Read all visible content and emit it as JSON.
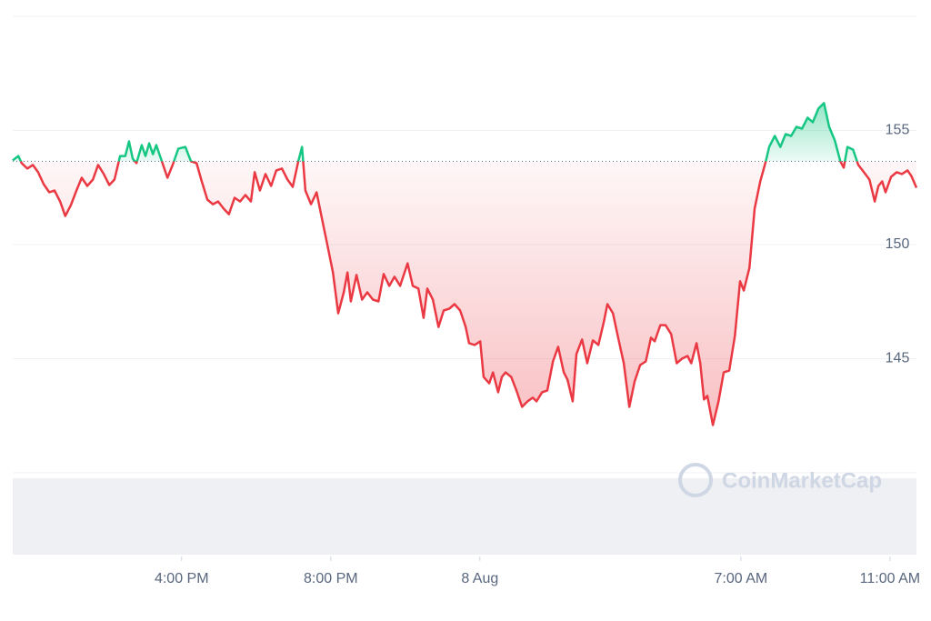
{
  "chart_data": {
    "type": "line",
    "watermark": "CoinMarketCap",
    "x": [
      11.47,
      11.62,
      11.71,
      11.86,
      12.01,
      12.15,
      12.3,
      12.45,
      12.59,
      12.74,
      12.88,
      13.03,
      13.18,
      13.32,
      13.47,
      13.62,
      13.76,
      13.91,
      14.06,
      14.2,
      14.35,
      14.49,
      14.59,
      14.69,
      14.79,
      14.93,
      15.03,
      15.13,
      15.23,
      15.32,
      15.47,
      15.62,
      15.76,
      15.91,
      16.1,
      16.25,
      16.4,
      16.54,
      16.69,
      16.84,
      16.98,
      17.13,
      17.27,
      17.42,
      17.57,
      17.71,
      17.86,
      17.96,
      18.1,
      18.25,
      18.4,
      18.54,
      18.69,
      18.84,
      18.98,
      19.13,
      19.23,
      19.32,
      19.47,
      19.62,
      19.76,
      19.91,
      20.06,
      20.2,
      20.35,
      20.45,
      20.54,
      20.69,
      20.84,
      20.98,
      21.13,
      21.28,
      21.42,
      21.57,
      21.71,
      21.86,
      22.06,
      22.2,
      22.35,
      22.49,
      22.59,
      22.74,
      22.89,
      23.03,
      23.18,
      23.32,
      23.47,
      23.62,
      23.71,
      23.86,
      24.01,
      24.1,
      24.25,
      24.35,
      24.49,
      24.59,
      24.69,
      24.84,
      24.98,
      25.13,
      25.28,
      25.42,
      25.52,
      25.67,
      25.81,
      25.96,
      26.1,
      26.25,
      26.35,
      26.49,
      26.59,
      26.74,
      26.88,
      27.03,
      27.18,
      27.32,
      27.42,
      27.57,
      27.71,
      27.86,
      28.01,
      28.15,
      28.3,
      28.45,
      28.59,
      28.69,
      28.84,
      28.98,
      29.13,
      29.28,
      29.42,
      29.57,
      29.67,
      29.81,
      29.91,
      30.01,
      30.1,
      30.25,
      30.4,
      30.54,
      30.69,
      30.84,
      30.98,
      31.08,
      31.23,
      31.37,
      31.52,
      31.67,
      31.76,
      31.91,
      32.06,
      32.2,
      32.35,
      32.49,
      32.64,
      32.79,
      32.93,
      33.08,
      33.23,
      33.37,
      33.52,
      33.67,
      33.76,
      33.86,
      34.01,
      34.15,
      34.3,
      34.45,
      34.59,
      34.69,
      34.79,
      34.88,
      35.03,
      35.18,
      35.32,
      35.47,
      35.57,
      35.71
    ],
    "values": [
      153.69,
      153.88,
      153.57,
      153.33,
      153.49,
      153.17,
      152.65,
      152.29,
      152.37,
      151.89,
      151.25,
      151.73,
      152.37,
      152.93,
      152.57,
      152.85,
      153.49,
      153.09,
      152.61,
      152.85,
      153.88,
      153.88,
      154.52,
      153.76,
      153.57,
      154.36,
      153.88,
      154.44,
      153.96,
      154.36,
      153.65,
      152.93,
      153.49,
      154.2,
      154.28,
      153.65,
      153.57,
      152.77,
      151.97,
      151.77,
      151.89,
      151.57,
      151.33,
      152.05,
      151.89,
      152.17,
      151.89,
      153.17,
      152.37,
      153.09,
      152.57,
      153.25,
      153.33,
      152.85,
      152.53,
      153.65,
      154.28,
      152.37,
      151.77,
      152.29,
      151.18,
      149.98,
      148.78,
      146.99,
      147.91,
      148.78,
      147.51,
      148.67,
      147.59,
      147.91,
      147.59,
      147.51,
      148.71,
      148.19,
      148.59,
      148.19,
      149.18,
      148.19,
      148.07,
      146.79,
      148.07,
      147.59,
      146.39,
      147.11,
      147.19,
      147.39,
      147.11,
      146.39,
      145.68,
      145.6,
      145.76,
      144.2,
      143.92,
      144.4,
      143.53,
      144.2,
      144.4,
      144.2,
      143.61,
      142.89,
      143.13,
      143.29,
      143.13,
      143.53,
      143.61,
      144.88,
      145.52,
      144.4,
      144.08,
      143.13,
      145.2,
      145.84,
      144.8,
      145.8,
      145.6,
      146.59,
      147.39,
      146.99,
      145.92,
      144.8,
      142.89,
      144.0,
      144.72,
      144.88,
      145.92,
      145.76,
      146.47,
      146.47,
      146.08,
      144.8,
      145.0,
      145.12,
      144.8,
      145.68,
      144.8,
      143.21,
      143.37,
      142.09,
      143.13,
      144.4,
      144.48,
      146.0,
      148.39,
      147.99,
      148.98,
      151.57,
      152.77,
      153.65,
      154.28,
      154.76,
      154.28,
      154.84,
      154.76,
      155.16,
      155.08,
      155.56,
      155.36,
      155.96,
      156.2,
      155.16,
      154.56,
      153.65,
      153.37,
      154.28,
      154.16,
      153.49,
      153.17,
      152.85,
      151.89,
      152.57,
      152.77,
      152.29,
      152.97,
      153.17,
      153.09,
      153.25,
      153.01,
      152.49
    ],
    "baseline": 153.65,
    "up_color": "#16c784",
    "down_color": "#ea3943",
    "xlim": [
      11.47,
      35.71
    ],
    "ylim": [
      140,
      160
    ],
    "xticks": [
      {
        "value": 16,
        "label": "4:00 PM"
      },
      {
        "value": 20,
        "label": "8:00 PM"
      },
      {
        "value": 24,
        "label": "8 Aug"
      },
      {
        "value": 31,
        "label": "7:00 AM"
      },
      {
        "value": 35,
        "label": "11:00 AM"
      }
    ],
    "yticks": [
      145,
      150,
      155
    ],
    "grid": true
  }
}
